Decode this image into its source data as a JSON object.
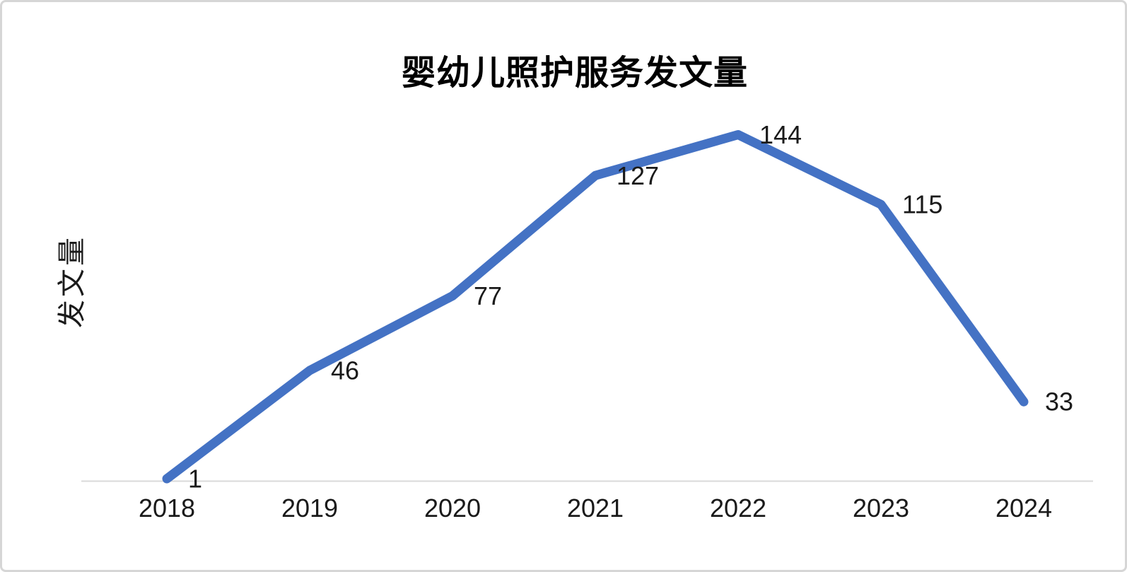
{
  "chart_data": {
    "type": "line",
    "title": "婴幼儿照护服务发文量",
    "ylabel": "发文量",
    "xlabel": "",
    "categories": [
      "2018",
      "2019",
      "2020",
      "2021",
      "2022",
      "2023",
      "2024"
    ],
    "values": [
      1,
      46,
      77,
      127,
      144,
      115,
      33
    ],
    "data_labels_shown": [
      "1",
      "46",
      "77",
      "127",
      "144",
      "115",
      "33"
    ],
    "ylim": [
      0,
      160
    ],
    "grid": false,
    "legend": "none",
    "colors": {
      "line": "#4472C4",
      "axis_line": "#D9D9D9",
      "tick_text": "#1A1A1A",
      "data_label_text": "#1A1A1A",
      "title_text": "#000000",
      "background": "#FFFFFF",
      "border": "#D6D6D6"
    }
  }
}
